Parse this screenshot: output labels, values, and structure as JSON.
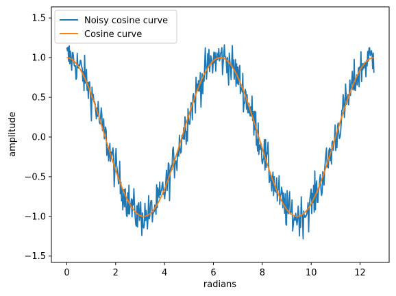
{
  "chart_data": {
    "type": "line",
    "xlabel": "radians",
    "ylabel": "amplitude",
    "xlim": [
      -0.63,
      13.19
    ],
    "ylim": [
      -1.58,
      1.64
    ],
    "xticks": [
      0,
      2,
      4,
      6,
      8,
      10,
      12
    ],
    "yticks": [
      -1.5,
      -1.0,
      -0.5,
      0.0,
      0.5,
      1.0,
      1.5
    ],
    "xtick_labels": [
      "0",
      "2",
      "4",
      "6",
      "8",
      "10",
      "12"
    ],
    "ytick_labels": [
      "−1.5",
      "−1.0",
      "−0.5",
      "0.0",
      "0.5",
      "1.0",
      "1.5"
    ],
    "grid": false,
    "legend": "top-left",
    "series": [
      {
        "name": "Noisy cosine curve",
        "color": "#1f77b4",
        "x_range": [
          0,
          12.566
        ],
        "n_points": 500,
        "function": "cos(x) + noise",
        "noise_amplitude": 0.18
      },
      {
        "name": "Cosine curve",
        "color": "#ff7f0e",
        "x_range": [
          0,
          12.566
        ],
        "n_points": 500,
        "function": "cos(x)"
      }
    ]
  }
}
